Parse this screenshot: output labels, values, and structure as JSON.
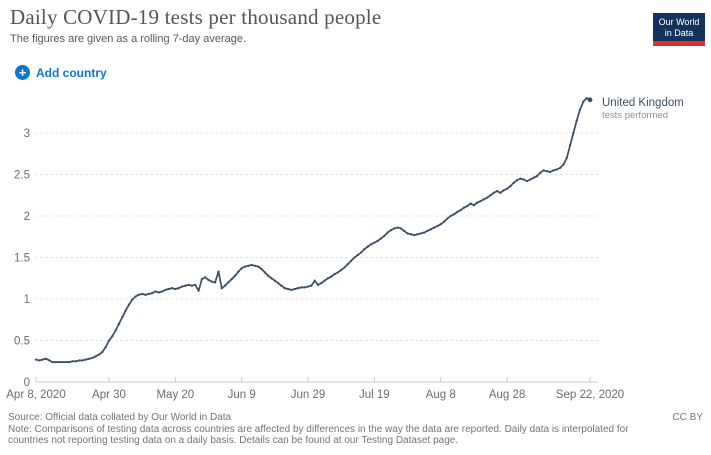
{
  "header": {
    "title": "Daily COVID-19 tests per thousand people",
    "subtitle": "The figures are given as a rolling 7-day average.",
    "add_country_label": "Add country",
    "plus_glyph": "+",
    "logo_line1": "Our World",
    "logo_line2": "in Data"
  },
  "chart_data": {
    "type": "line",
    "title": "Daily COVID-19 tests per thousand people",
    "subtitle": "The figures are given as a rolling 7-day average.",
    "xlabel": "",
    "ylabel": "",
    "x_start_date": "Apr 8, 2020",
    "x_end_date": "Sep 22, 2020",
    "x_tick_labels": [
      "Apr 8, 2020",
      "Apr 30",
      "May 20",
      "Jun 9",
      "Jun 29",
      "Jul 19",
      "Aug 8",
      "Aug 28",
      "Sep 22, 2020"
    ],
    "x_tick_days": [
      0,
      22,
      42,
      62,
      82,
      102,
      122,
      142,
      167
    ],
    "y_ticks": [
      0,
      0.5,
      1,
      1.5,
      2,
      2.5,
      3
    ],
    "ylim": [
      0,
      3.45
    ],
    "grid": "dotted-horizontal",
    "legend": "end-of-line-label",
    "series": [
      {
        "name": "United Kingdom",
        "sublabel": "tests performed",
        "color": "#3c4e66",
        "x_unit": "days since Apr 8, 2020",
        "values": [
          0.27,
          0.26,
          0.27,
          0.28,
          0.26,
          0.24,
          0.24,
          0.24,
          0.24,
          0.24,
          0.24,
          0.25,
          0.25,
          0.26,
          0.26,
          0.27,
          0.28,
          0.29,
          0.31,
          0.33,
          0.36,
          0.42,
          0.5,
          0.55,
          0.62,
          0.7,
          0.78,
          0.86,
          0.93,
          0.99,
          1.03,
          1.05,
          1.06,
          1.05,
          1.06,
          1.07,
          1.09,
          1.08,
          1.09,
          1.11,
          1.12,
          1.13,
          1.12,
          1.13,
          1.15,
          1.16,
          1.17,
          1.16,
          1.17,
          1.1,
          1.24,
          1.26,
          1.23,
          1.21,
          1.2,
          1.33,
          1.13,
          1.16,
          1.2,
          1.24,
          1.28,
          1.33,
          1.37,
          1.39,
          1.4,
          1.41,
          1.4,
          1.39,
          1.36,
          1.32,
          1.28,
          1.25,
          1.22,
          1.19,
          1.16,
          1.13,
          1.12,
          1.11,
          1.12,
          1.13,
          1.14,
          1.14,
          1.15,
          1.16,
          1.22,
          1.17,
          1.19,
          1.22,
          1.25,
          1.27,
          1.3,
          1.32,
          1.35,
          1.38,
          1.42,
          1.46,
          1.5,
          1.53,
          1.56,
          1.6,
          1.63,
          1.66,
          1.68,
          1.7,
          1.73,
          1.76,
          1.8,
          1.83,
          1.85,
          1.86,
          1.85,
          1.82,
          1.79,
          1.78,
          1.77,
          1.78,
          1.79,
          1.8,
          1.82,
          1.84,
          1.86,
          1.88,
          1.9,
          1.93,
          1.97,
          2.0,
          2.02,
          2.05,
          2.07,
          2.1,
          2.12,
          2.15,
          2.13,
          2.16,
          2.18,
          2.2,
          2.22,
          2.25,
          2.28,
          2.3,
          2.28,
          2.31,
          2.33,
          2.36,
          2.4,
          2.43,
          2.45,
          2.44,
          2.42,
          2.44,
          2.46,
          2.48,
          2.52,
          2.55,
          2.54,
          2.53,
          2.55,
          2.56,
          2.58,
          2.62,
          2.7,
          2.85,
          3.0,
          3.15,
          3.28,
          3.38,
          3.42,
          3.4
        ]
      }
    ]
  },
  "footer": {
    "source": "Source: Official data collated by Our World in Data",
    "note": "Note: Comparisons of testing data across countries are affected by differences in the way the data are reported. Daily data is interpolated for countries not reporting testing data on a daily basis. Details can be found at our Testing Dataset page.",
    "license": "CC BY"
  },
  "colors": {
    "accent_blue": "#0d76ce",
    "series_line": "#3c4e66",
    "gridline": "#dedede",
    "axis_line": "#c8c8c8",
    "tick_label": "#6b6b70",
    "logo_navy": "#14335c",
    "logo_red": "#e03129",
    "title_gray": "#555555",
    "footer_gray": "#747474"
  }
}
